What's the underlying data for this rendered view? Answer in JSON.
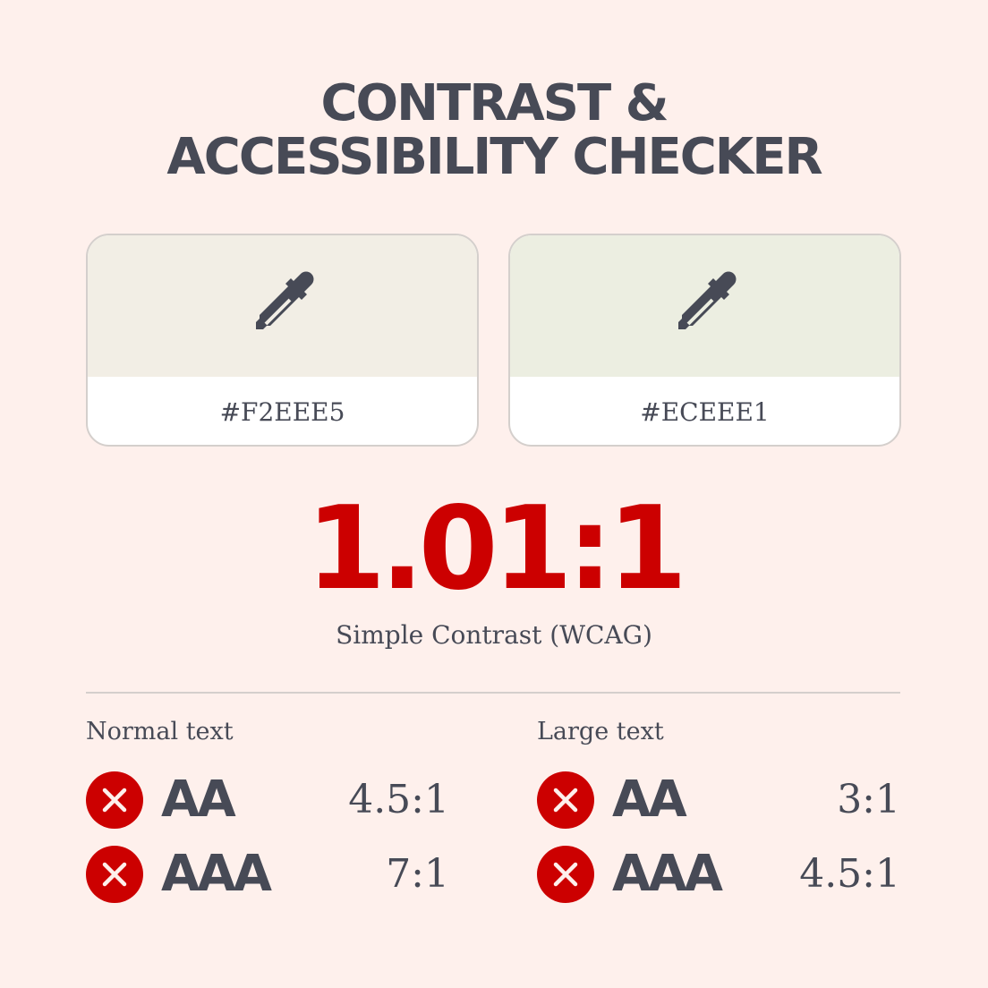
{
  "title": {
    "line1": "Contrast &",
    "line2": "Accessibility Checker"
  },
  "colors": {
    "background": "#FEF0EC",
    "text": "#474A56",
    "fail": "#CC0000"
  },
  "swatches": [
    {
      "hex": "#F2EEE5",
      "color": "#F2EEE5",
      "icon": "eyedropper-icon"
    },
    {
      "hex": "#ECEEE1",
      "color": "#ECEEE1",
      "icon": "eyedropper-icon"
    }
  ],
  "result": {
    "ratio": "1.01:1",
    "label": "Simple Contrast (WCAG)"
  },
  "normal": {
    "heading": "Normal text",
    "rows": [
      {
        "level": "AA",
        "ratio": "4.5:1",
        "status": "fail"
      },
      {
        "level": "AAA",
        "ratio": "7:1",
        "status": "fail"
      }
    ]
  },
  "large": {
    "heading": "Large text",
    "rows": [
      {
        "level": "AA",
        "ratio": "3:1",
        "status": "fail"
      },
      {
        "level": "AAA",
        "ratio": "4.5:1",
        "status": "fail"
      }
    ]
  }
}
